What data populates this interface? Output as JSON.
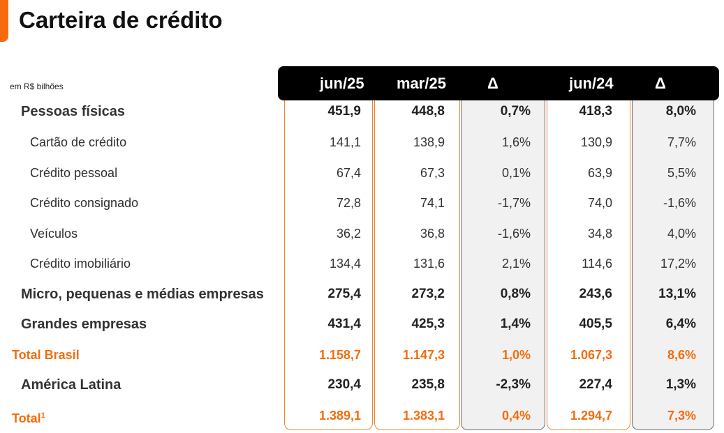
{
  "title": "Carteira de crédito",
  "units_note": "em R$ bilhões",
  "headers": [
    "jun/25",
    "mar/25",
    "Δ",
    "jun/24",
    "Δ"
  ],
  "rows": [
    {
      "label": "Pessoas físicas",
      "values": [
        "451,9",
        "448,8",
        "0,7%",
        "418,3",
        "8,0%"
      ]
    },
    {
      "label": "Cartão de crédito",
      "values": [
        "141,1",
        "138,9",
        "1,6%",
        "130,9",
        "7,7%"
      ]
    },
    {
      "label": "Crédito pessoal",
      "values": [
        "67,4",
        "67,3",
        "0,1%",
        "63,9",
        "5,5%"
      ]
    },
    {
      "label": "Crédito consignado",
      "values": [
        "72,8",
        "74,1",
        "-1,7%",
        "74,0",
        "-1,6%"
      ]
    },
    {
      "label": "Veículos",
      "values": [
        "36,2",
        "36,8",
        "-1,6%",
        "34,8",
        "4,0%"
      ]
    },
    {
      "label": "Crédito imobiliário",
      "values": [
        "134,4",
        "131,6",
        "2,1%",
        "114,6",
        "17,2%"
      ]
    },
    {
      "label": "Micro, pequenas e médias empresas",
      "values": [
        "275,4",
        "273,2",
        "0,8%",
        "243,6",
        "13,1%"
      ]
    },
    {
      "label": "Grandes empresas",
      "values": [
        "431,4",
        "425,3",
        "1,4%",
        "405,5",
        "6,4%"
      ]
    },
    {
      "label": "Total Brasil",
      "values": [
        "1.158,7",
        "1.147,3",
        "1,0%",
        "1.067,3",
        "8,6%"
      ]
    },
    {
      "label": "América Latina",
      "values": [
        "230,4",
        "235,8",
        "-2,3%",
        "227,4",
        "1,3%"
      ]
    },
    {
      "label": "Total",
      "footnote": "1",
      "values": [
        "1.389,1",
        "1.383,1",
        "0,4%",
        "1.294,7",
        "7,3%"
      ]
    }
  ],
  "colors": {
    "accent": "#f56c0e",
    "header_bg": "#000000",
    "delta_col_bg": "#f1f1f1"
  }
}
